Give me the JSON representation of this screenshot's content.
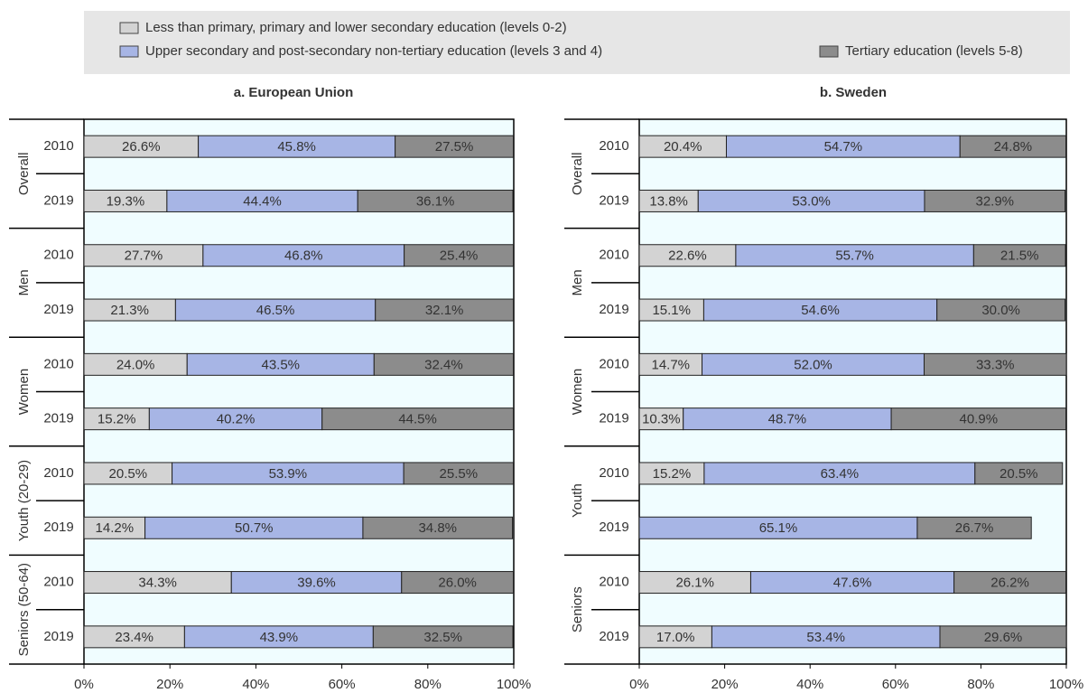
{
  "chart_data": [
    {
      "type": "stacked-bar-horizontal",
      "title": "a. European Union",
      "groups": [
        "Overall",
        "Men",
        "Women",
        "Youth (20-29)",
        "Seniors (50-64)"
      ],
      "categories": [
        "2010",
        "2019",
        "2010",
        "2019",
        "2010",
        "2019",
        "2010",
        "2019",
        "2010",
        "2019"
      ],
      "series": [
        {
          "name": "Less than primary, primary and lower secondary education (levels 0-2)",
          "color": "#d3d3d3",
          "values": [
            26.6,
            19.3,
            27.7,
            21.3,
            24.0,
            15.2,
            20.5,
            14.2,
            34.3,
            23.4
          ],
          "value_labels": [
            "26.6%",
            "19.3%",
            "27.7%",
            "21.3%",
            "24.0%",
            "15.2%",
            "20.5%",
            "14.2%",
            "34.3%",
            "23.4%"
          ]
        },
        {
          "name": "Upper secondary and post-secondary non-tertiary education (levels 3 and 4)",
          "color": "#a7b5e5",
          "values": [
            45.8,
            44.4,
            46.8,
            46.5,
            43.5,
            40.2,
            53.9,
            50.7,
            39.6,
            43.9
          ],
          "value_labels": [
            "45.8%",
            "44.4%",
            "46.8%",
            "46.5%",
            "43.5%",
            "40.2%",
            "53.9%",
            "50.7%",
            "39.6%",
            "43.9%"
          ]
        },
        {
          "name": "Tertiary education (levels 5-8)",
          "color": "#8c8c8c",
          "values": [
            27.5,
            36.1,
            25.4,
            32.1,
            32.4,
            44.5,
            25.5,
            34.8,
            26.0,
            32.5
          ],
          "value_labels": [
            "27.5%",
            "36.1%",
            "25.4%",
            "32.1%",
            "32.4%",
            "44.5%",
            "25.5%",
            "34.8%",
            "26.0%",
            "32.5%"
          ]
        }
      ],
      "xlim": [
        0,
        100
      ],
      "xticks": [
        {
          "value": 0,
          "label": "0%"
        },
        {
          "value": 20,
          "label": "20%"
        },
        {
          "value": 40,
          "label": "40%"
        },
        {
          "value": 60,
          "label": "60%"
        },
        {
          "value": 80,
          "label": "80%"
        },
        {
          "value": 100,
          "label": "100%"
        }
      ]
    },
    {
      "type": "stacked-bar-horizontal",
      "title": "b. Sweden",
      "groups": [
        "Overall",
        "Men",
        "Women",
        "Youth",
        "Seniors"
      ],
      "categories": [
        "2010",
        "2019",
        "2010",
        "2019",
        "2010",
        "2019",
        "2010",
        "2019",
        "2010",
        "2019"
      ],
      "series": [
        {
          "color": "#d3d3d3",
          "values": [
            20.4,
            13.8,
            22.6,
            15.1,
            14.7,
            10.3,
            15.2,
            null,
            26.1,
            17.0
          ],
          "value_labels": [
            "20.4%",
            "13.8%",
            "22.6%",
            "15.1%",
            "14.7%",
            "10.3%",
            "15.2%",
            null,
            "26.1%",
            "17.0%"
          ]
        },
        {
          "color": "#a7b5e5",
          "values": [
            54.7,
            53.0,
            55.7,
            54.6,
            52.0,
            48.7,
            63.4,
            65.1,
            47.6,
            53.4
          ],
          "value_labels": [
            "54.7%",
            "53.0%",
            "55.7%",
            "54.6%",
            "52.0%",
            "48.7%",
            "63.4%",
            "65.1%",
            "47.6%",
            "53.4%"
          ]
        },
        {
          "color": "#8c8c8c",
          "values": [
            24.8,
            32.9,
            21.5,
            30.0,
            33.3,
            40.9,
            20.5,
            26.7,
            26.2,
            29.6
          ],
          "value_labels": [
            "24.8%",
            "32.9%",
            "21.5%",
            "30.0%",
            "33.3%",
            "40.9%",
            "20.5%",
            "26.7%",
            "26.2%",
            "29.6%"
          ]
        }
      ],
      "xlim": [
        0,
        100
      ],
      "xticks": [
        {
          "value": 0,
          "label": "0%"
        },
        {
          "value": 20,
          "label": "20%"
        },
        {
          "value": 40,
          "label": "40%"
        },
        {
          "value": 60,
          "label": "60%"
        },
        {
          "value": 80,
          "label": "80%"
        },
        {
          "value": 100,
          "label": "100%"
        }
      ]
    }
  ]
}
